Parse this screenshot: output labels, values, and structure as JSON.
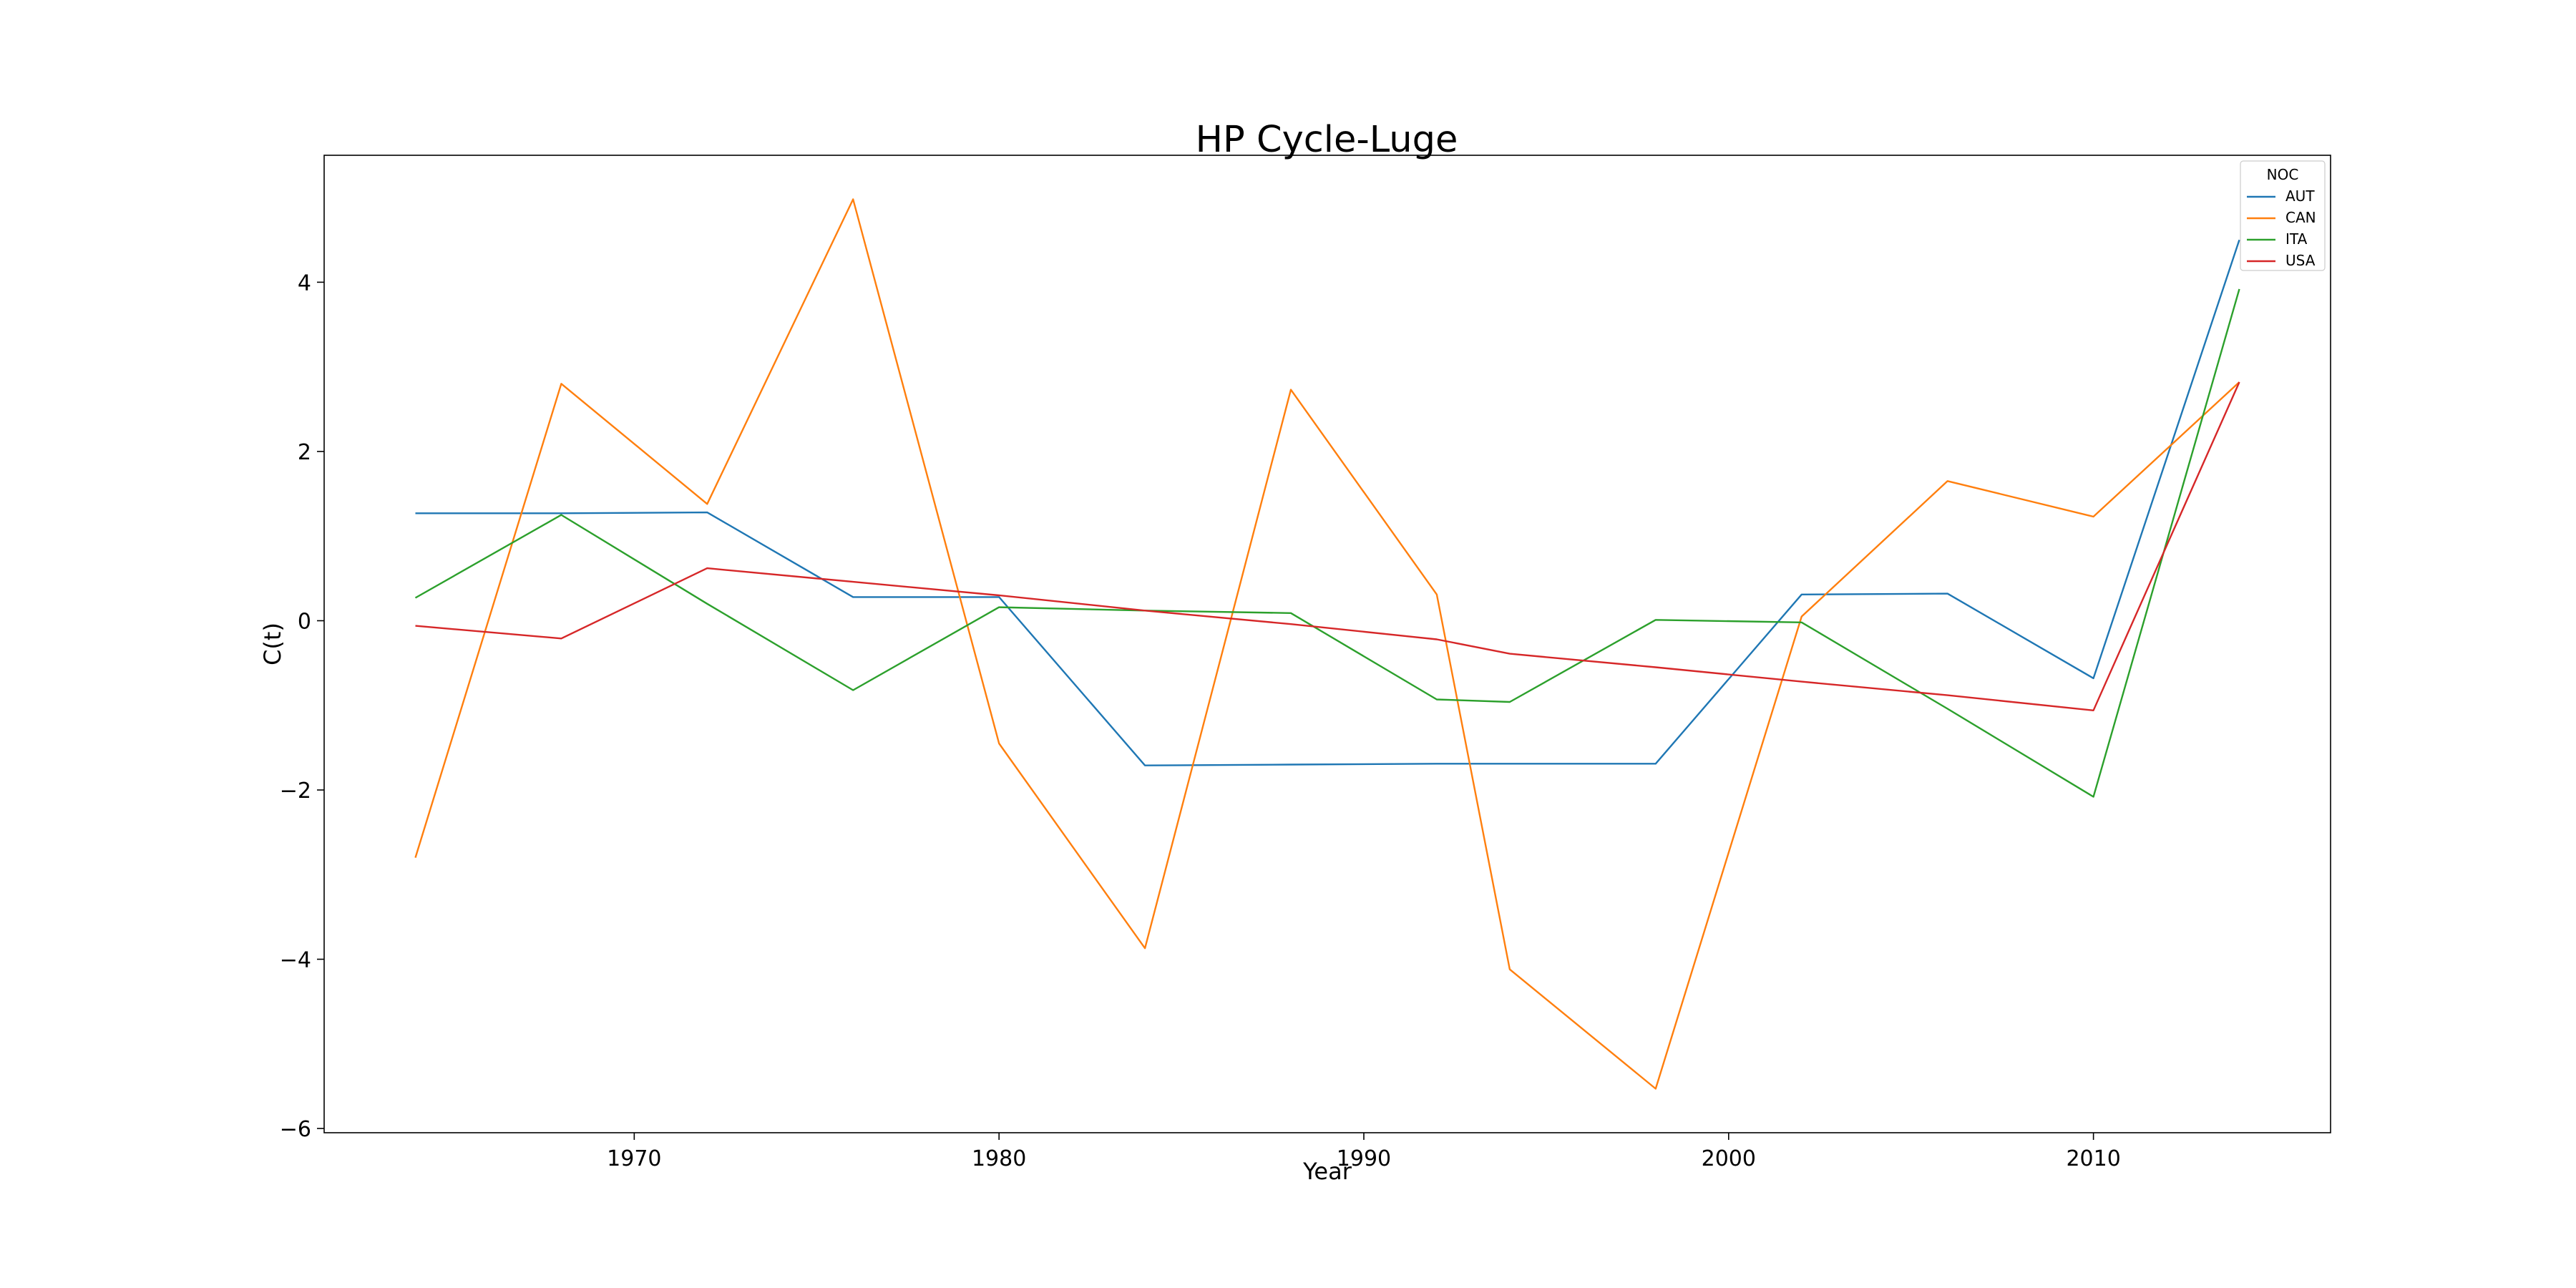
{
  "chart_data": {
    "type": "line",
    "title": "HP Cycle-Luge",
    "xlabel": "Year",
    "ylabel": "C(t)",
    "xlim": [
      1961.5,
      2016.5
    ],
    "ylim": [
      -6.05,
      5.5
    ],
    "xticks": [
      1970,
      1980,
      1990,
      2000,
      2010
    ],
    "yticks": [
      -6,
      -4,
      -2,
      0,
      2,
      4
    ],
    "grid": false,
    "legend": {
      "title": "NOC",
      "placement": "top-right"
    },
    "series": [
      {
        "name": "AUT",
        "color": "#1f77b4",
        "x": [
          1964,
          1968,
          1972,
          1976,
          1980,
          1984,
          1988,
          1992,
          1994,
          1998,
          2002,
          2006,
          2010,
          2014
        ],
        "y": [
          1.27,
          1.27,
          1.28,
          0.28,
          0.28,
          -1.71,
          -1.7,
          -1.69,
          -1.69,
          -1.69,
          0.31,
          0.32,
          -0.68,
          4.5
        ]
      },
      {
        "name": "CAN",
        "color": "#ff7f0e",
        "x": [
          1964,
          1968,
          1972,
          1976,
          1980,
          1984,
          1988,
          1992,
          1994,
          1998,
          2002,
          2006,
          2010,
          2014
        ],
        "y": [
          -2.8,
          2.8,
          1.38,
          4.98,
          -1.45,
          -3.87,
          2.73,
          0.31,
          -4.12,
          -5.53,
          0.05,
          1.65,
          1.23,
          2.82
        ]
      },
      {
        "name": "ITA",
        "color": "#2ca02c",
        "x": [
          1964,
          1968,
          1972,
          1976,
          1980,
          1984,
          1988,
          1992,
          1994,
          1998,
          2002,
          2006,
          2010,
          2014
        ],
        "y": [
          0.27,
          1.25,
          0.2,
          -0.82,
          0.16,
          0.12,
          0.09,
          -0.93,
          -0.96,
          0.01,
          -0.02,
          -1.04,
          -2.08,
          3.92
        ]
      },
      {
        "name": "USA",
        "color": "#d62728",
        "x": [
          1964,
          1968,
          1972,
          1976,
          1980,
          1984,
          1988,
          1992,
          1994,
          1998,
          2002,
          2006,
          2010,
          2014
        ],
        "y": [
          -0.06,
          -0.21,
          0.62,
          0.46,
          0.3,
          0.12,
          -0.04,
          -0.22,
          -0.39,
          -0.55,
          -0.72,
          -0.88,
          -1.06,
          2.82
        ]
      }
    ]
  }
}
